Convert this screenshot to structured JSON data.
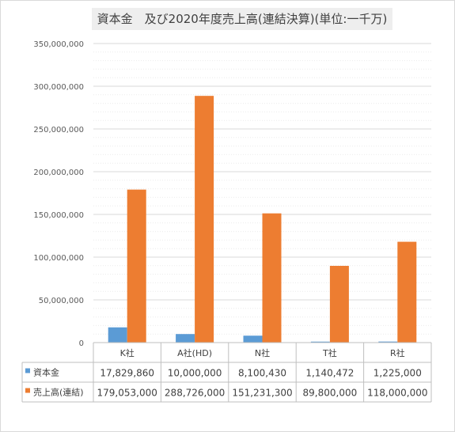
{
  "chart_data": {
    "type": "bar",
    "title": "資本金　及び2020年度売上高(連結決算)(単位:一千万)",
    "categories": [
      "K社",
      "A社(HD)",
      "N社",
      "T社",
      "R社"
    ],
    "series": [
      {
        "name": "資本金",
        "color": "#5b9bd5",
        "values": [
          17829860,
          10000000,
          8100430,
          1140472,
          1225000
        ],
        "value_labels": [
          "17,829,860",
          "10,000,000",
          "8,100,430",
          "1,140,472",
          "1,225,000"
        ]
      },
      {
        "name": "売上高(連結)",
        "color": "#ed7d31",
        "values": [
          179053000,
          288726000,
          151231300,
          89800000,
          118000000
        ],
        "value_labels": [
          "179,053,000",
          "288,726,000",
          "151,231,300",
          "89,800,000",
          "118,000,000"
        ]
      }
    ],
    "ylim": [
      0,
      350000000
    ],
    "yticks": [
      0,
      50000000,
      100000000,
      150000000,
      200000000,
      250000000,
      300000000,
      350000000
    ],
    "ytick_labels": [
      "0",
      "50,000,000",
      "100,000,000",
      "150,000,000",
      "200,000,000",
      "250,000,000",
      "300,000,000",
      "350,000,000"
    ],
    "grid": true,
    "legend": "data-table"
  }
}
